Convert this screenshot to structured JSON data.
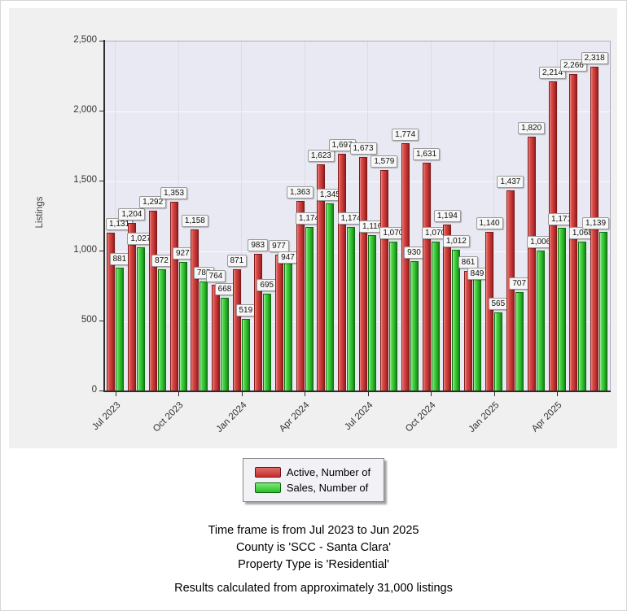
{
  "chart_data": {
    "type": "bar",
    "title": "",
    "ylabel": "Listings",
    "xlabel": "",
    "ylim": [
      0,
      2500
    ],
    "ytick_interval": 500,
    "ytick_labels": [
      "0",
      "500",
      "1,000",
      "1,500",
      "2,000",
      "2,500"
    ],
    "xtick_labels": [
      "Jul 2023",
      "Oct 2023",
      "Jan 2024",
      "Apr 2024",
      "Jul 2024",
      "Oct 2024",
      "Jan 2025",
      "Apr 2025"
    ],
    "xtick_every": 3,
    "grid": true,
    "legend_position": "bottom",
    "categories": [
      "Jul 2023",
      "Aug 2023",
      "Sep 2023",
      "Oct 2023",
      "Nov 2023",
      "Dec 2023",
      "Jan 2024",
      "Feb 2024",
      "Mar 2024",
      "Apr 2024",
      "May 2024",
      "Jun 2024",
      "Jul 2024",
      "Aug 2024",
      "Sep 2024",
      "Oct 2024",
      "Nov 2024",
      "Dec 2024",
      "Jan 2025",
      "Feb 2025",
      "Mar 2025",
      "Apr 2025",
      "May 2025",
      "Jun 2025"
    ],
    "series": [
      {
        "name": "Active, Number of",
        "color": "#c53737",
        "values": [
          1131,
          1204,
          1292,
          1353,
          1158,
          764,
          871,
          983,
          977,
          1363,
          1623,
          1697,
          1673,
          1579,
          1774,
          1631,
          1194,
          861,
          1140,
          1437,
          1820,
          2214,
          2266,
          2318
        ]
      },
      {
        "name": "Sales, Number of",
        "color": "#2dbd2d",
        "values": [
          881,
          1027,
          872,
          927,
          785,
          668,
          519,
          695,
          947,
          1174,
          1345,
          1174,
          1116,
          1070,
          930,
          1070,
          1012,
          849,
          565,
          707,
          1006,
          1171,
          1068,
          1139
        ]
      }
    ]
  },
  "legend": {
    "items": [
      {
        "label": "Active, Number of",
        "color": "#c53737"
      },
      {
        "label": "Sales, Number of",
        "color": "#2dbd2d"
      }
    ]
  },
  "footer": {
    "line1": "Time frame is from Jul 2023 to Jun 2025",
    "line2": "County is 'SCC - Santa Clara'",
    "line3": "Property Type is 'Residential'",
    "line4": "Results calculated from approximately 31,000 listings"
  },
  "colors": {
    "panel_background": "#f0f0f0",
    "plot_background": "#e9e9f3",
    "active_bar": "#c53737",
    "sales_bar": "#2dbd2d"
  }
}
